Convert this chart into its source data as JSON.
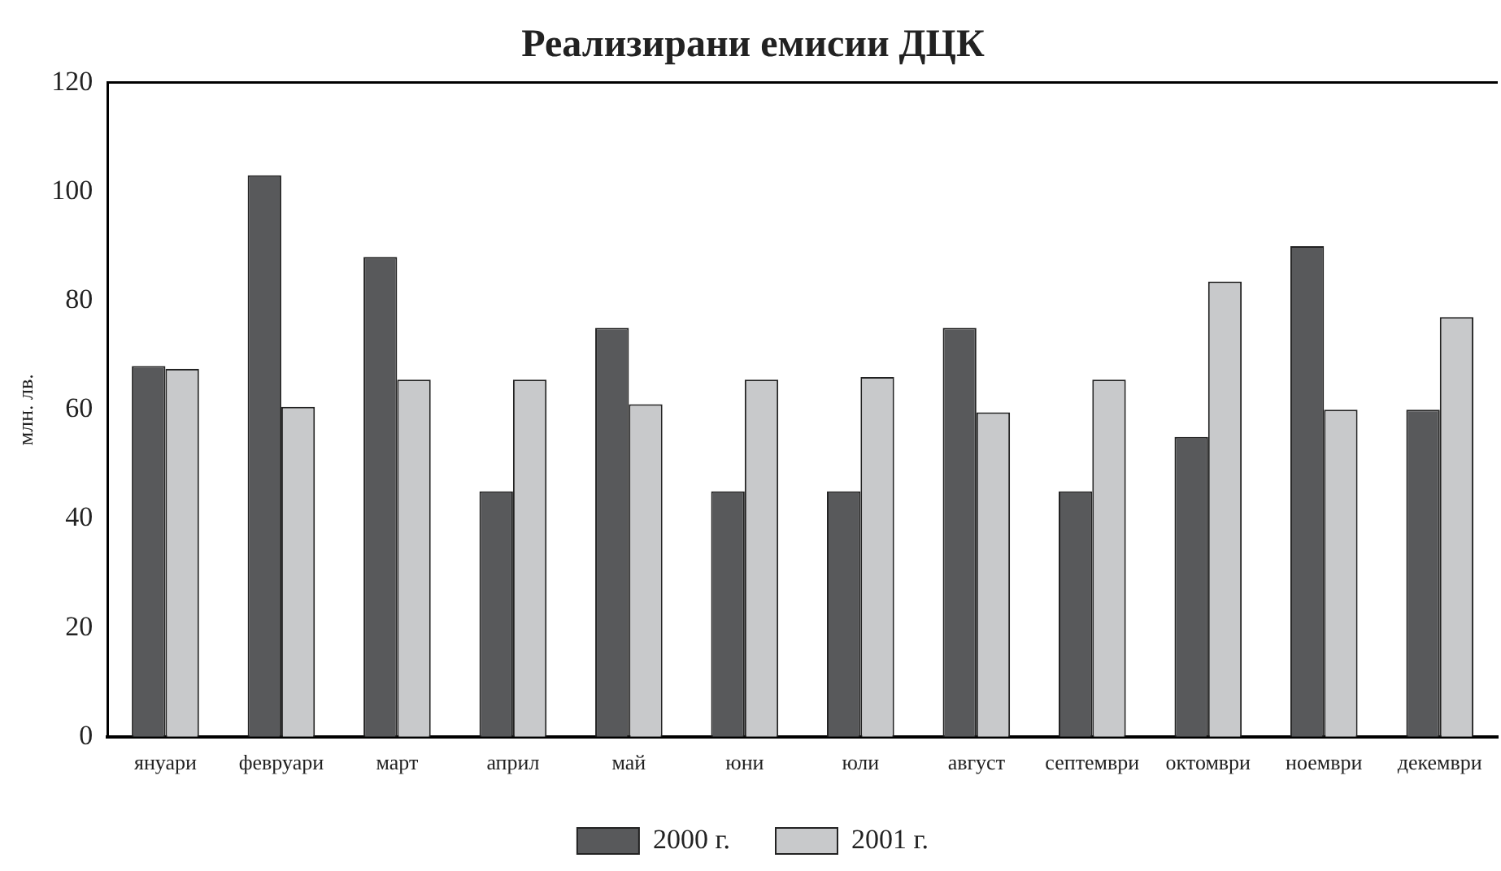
{
  "chart_data": {
    "type": "bar",
    "title": "Реализирани емисии ДЦК",
    "ylabel": "млн. лв.",
    "categories": [
      "януари",
      "февруари",
      "март",
      "април",
      "май",
      "юни",
      "юли",
      "август",
      "септември",
      "октомври",
      "ноември",
      "декември"
    ],
    "series": [
      {
        "name": "2000 г.",
        "color": "#58595b",
        "values": [
          68,
          103,
          88,
          45,
          75,
          45,
          45,
          75,
          45,
          55,
          90,
          60
        ]
      },
      {
        "name": "2001 г.",
        "color": "#c8c9cb",
        "values": [
          67.5,
          60.5,
          65.5,
          65.5,
          61,
          65.5,
          66,
          59.5,
          65.5,
          83.5,
          60,
          77
        ]
      }
    ],
    "ylim": [
      0,
      120
    ],
    "yticks": [
      0,
      20,
      40,
      60,
      80,
      100,
      120
    ],
    "grid": false,
    "legend": "bottom"
  }
}
